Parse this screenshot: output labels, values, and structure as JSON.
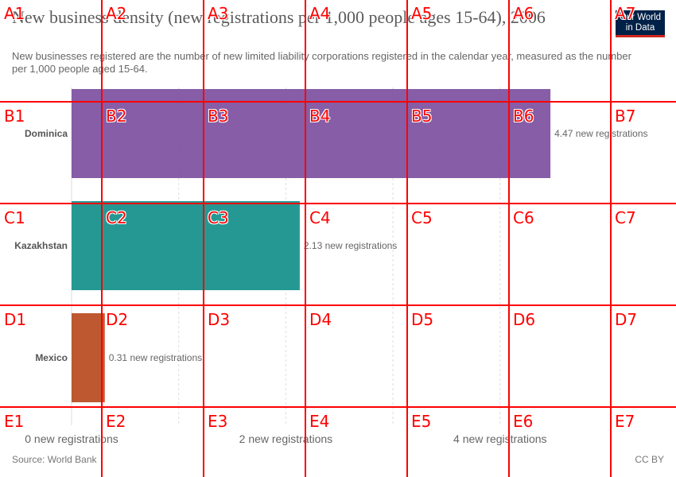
{
  "header": {
    "title": "New business density (new registrations per 1,000 people ages 15-64), 2006",
    "subtitle": "New businesses registered are the number of new limited liability corporations registered in the calendar year, measured as the number per 1,000 people aged 15-64.",
    "logo_line1": "Our World",
    "logo_line2": "in Data",
    "logo_bg": "#002147",
    "logo_accent": "#ce261e"
  },
  "footer": {
    "source": "Source: World Bank",
    "license": "CC BY"
  },
  "chart_data": {
    "type": "bar",
    "orientation": "horizontal",
    "categories": [
      "Dominica",
      "Kazakhstan",
      "Mexico"
    ],
    "values": [
      4.47,
      2.13,
      0.31
    ],
    "value_labels": [
      "4.47 new registrations",
      "2.13 new registrations",
      "0.31 new registrations"
    ],
    "colors": [
      "#7c4f9e",
      "#148f8a",
      "#b94a1e"
    ],
    "xlim": [
      0,
      5
    ],
    "xticks": [
      0,
      1,
      2,
      3,
      4
    ],
    "xtick_labels": [
      "0 new registrations",
      "",
      "2 new registrations",
      "",
      "4 new registrations"
    ],
    "grid": true
  },
  "overlay": {
    "columns": [
      "1",
      "2",
      "3",
      "4",
      "5",
      "6",
      "7"
    ],
    "rows": [
      "A",
      "B",
      "C",
      "D",
      "E"
    ]
  }
}
